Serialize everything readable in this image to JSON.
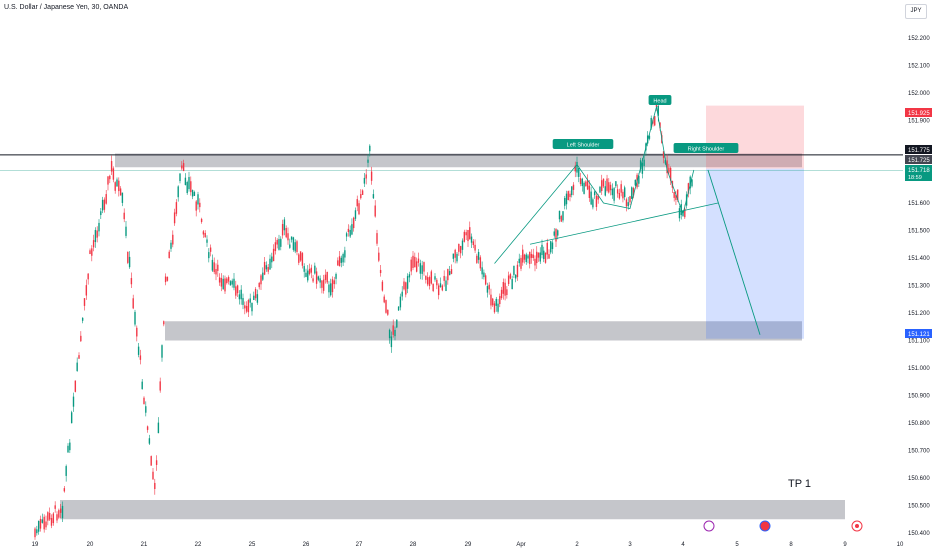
{
  "header": {
    "title": "U.S. Dollar / Japanese Yen, 30, OANDA",
    "currency": "JPY"
  },
  "annotations": {
    "tp": "TP 1",
    "head": "Head",
    "left_shoulder": "Left Shoulder",
    "right_shoulder": "Right Shoulder"
  },
  "price_tags": [
    {
      "text": "151.925",
      "color": "#f23645"
    },
    {
      "text": "151.775",
      "color": "#131722"
    },
    {
      "text": "151.725",
      "color": "#434651"
    },
    {
      "text": "151.718",
      "sub": "18:59",
      "color": "#089981"
    },
    {
      "text": "151.121",
      "color": "#2962ff"
    }
  ],
  "chart_data": {
    "type": "candlestick",
    "symbol": "USDJPY",
    "interval": "30",
    "ylim": [
      150.4,
      152.25
    ],
    "y_ticks": [
      "152.200",
      "152.100",
      "152.000",
      "151.900",
      "151.800",
      "151.700",
      "151.600",
      "151.500",
      "151.400",
      "151.300",
      "151.200",
      "151.100",
      "151.000",
      "150.900",
      "150.800",
      "150.700",
      "150.600",
      "150.500",
      "150.400"
    ],
    "x_ticks": [
      "19",
      "20",
      "21",
      "22",
      "25",
      "26",
      "27",
      "28",
      "29",
      "Apr",
      "2",
      "3",
      "4",
      "5",
      "8",
      "9",
      "10"
    ],
    "price_path": [
      [
        "19",
        150.4
      ],
      [
        "19.5",
        150.5
      ],
      [
        "20",
        151.4
      ],
      [
        "20.4",
        151.72
      ],
      [
        "20.6",
        151.6
      ],
      [
        "21",
        150.9
      ],
      [
        "21.2",
        150.55
      ],
      [
        "21.4",
        151.3
      ],
      [
        "21.7",
        151.72
      ],
      [
        "22",
        151.6
      ],
      [
        "22.3",
        151.35
      ],
      [
        "22.6",
        151.3
      ],
      [
        "25",
        151.22
      ],
      [
        "25.3",
        151.38
      ],
      [
        "25.6",
        151.5
      ],
      [
        "26",
        151.36
      ],
      [
        "26.5",
        151.3
      ],
      [
        "27",
        151.6
      ],
      [
        "27.2",
        151.78
      ],
      [
        "27.4",
        151.35
      ],
      [
        "27.6",
        151.1
      ],
      [
        "28",
        151.4
      ],
      [
        "28.5",
        151.28
      ],
      [
        "29",
        151.5
      ],
      [
        "29.5",
        151.22
      ],
      [
        "Apr",
        151.38
      ],
      [
        "Apr.5",
        151.42
      ],
      [
        "2",
        151.72
      ],
      [
        "2.3",
        151.62
      ],
      [
        "2.6",
        151.67
      ],
      [
        "3",
        151.6
      ],
      [
        "3.3",
        151.78
      ],
      [
        "3.5",
        151.95
      ],
      [
        "3.7",
        151.72
      ],
      [
        "4",
        151.55
      ],
      [
        "4.2",
        151.72
      ]
    ],
    "zones": [
      {
        "name": "resistance",
        "from": 151.73,
        "to": 151.78
      },
      {
        "name": "support",
        "from": 151.1,
        "to": 151.17
      },
      {
        "name": "bottom-support",
        "from": 150.45,
        "to": 150.52
      }
    ],
    "horizontal_lines": [
      151.775,
      151.718
    ],
    "trade": {
      "side": "short",
      "entry": 151.725,
      "stop": 151.925,
      "target": 151.121
    },
    "pattern": "Head and Shoulders"
  }
}
